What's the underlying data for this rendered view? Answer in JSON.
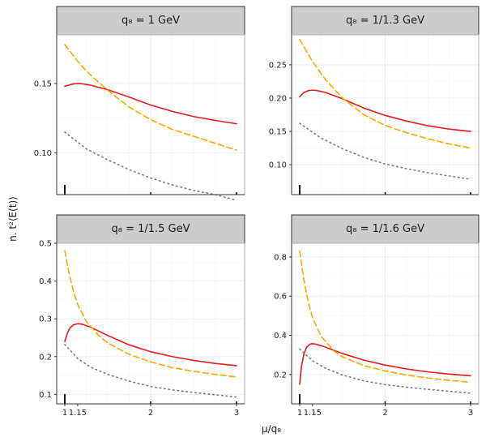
{
  "ylabel": "n. t²⟨E(t)⟩",
  "xlabel": "μ/q₈",
  "chart_data": [
    {
      "type": "line",
      "title": "q₈ = 1 GeV",
      "xlim": [
        1,
        3
      ],
      "ylim": [
        0.07,
        0.185
      ],
      "xticks": [
        1,
        2,
        3
      ],
      "yticks": [
        0.1,
        0.15
      ],
      "ytick_labels": [
        "0.10",
        "0.15"
      ],
      "series": [
        {
          "name": "solid",
          "color": "#e41a1c",
          "dash": "solid",
          "x": [
            1.0,
            1.1,
            1.15,
            1.2,
            1.3,
            1.5,
            1.75,
            2.0,
            2.25,
            2.5,
            2.75,
            3.0
          ],
          "y": [
            0.148,
            0.1497,
            0.15,
            0.1498,
            0.1488,
            0.1455,
            0.1402,
            0.1345,
            0.13,
            0.1262,
            0.1234,
            0.121
          ]
        },
        {
          "name": "dashed",
          "color": "#ffa500",
          "dash": "dashed",
          "x": [
            1.0,
            1.15,
            1.25,
            1.5,
            1.75,
            2.0,
            2.25,
            2.5,
            2.75,
            3.0
          ],
          "y": [
            0.178,
            0.166,
            0.159,
            0.145,
            0.133,
            0.124,
            0.117,
            0.112,
            0.107,
            0.102
          ]
        },
        {
          "name": "dotted",
          "color": "#7a7a7a",
          "dash": "dotted",
          "x": [
            1.0,
            1.25,
            1.5,
            1.75,
            2.0,
            2.25,
            2.5,
            2.75,
            3.0
          ],
          "y": [
            0.115,
            0.103,
            0.095,
            0.088,
            0.082,
            0.077,
            0.073,
            0.07,
            0.066
          ]
        }
      ]
    },
    {
      "type": "line",
      "title": "q₈ = 1/1.3 GeV",
      "xlim": [
        1,
        3
      ],
      "ylim": [
        0.055,
        0.295
      ],
      "xticks": [
        1,
        2,
        3
      ],
      "yticks": [
        0.1,
        0.15,
        0.2,
        0.25
      ],
      "ytick_labels": [
        "0.10",
        "0.15",
        "0.20",
        "0.25"
      ],
      "series": [
        {
          "name": "solid",
          "color": "#e41a1c",
          "dash": "solid",
          "x": [
            1.0,
            1.05,
            1.1,
            1.15,
            1.2,
            1.3,
            1.5,
            1.75,
            2.0,
            2.25,
            2.5,
            2.75,
            3.0
          ],
          "y": [
            0.202,
            0.2085,
            0.2112,
            0.212,
            0.2115,
            0.2085,
            0.199,
            0.185,
            0.174,
            0.1655,
            0.1585,
            0.1535,
            0.15
          ]
        },
        {
          "name": "dashed",
          "color": "#ffa500",
          "dash": "dashed",
          "x": [
            1.0,
            1.15,
            1.3,
            1.5,
            1.75,
            2.0,
            2.25,
            2.5,
            2.75,
            3.0
          ],
          "y": [
            0.288,
            0.255,
            0.228,
            0.2,
            0.175,
            0.159,
            0.148,
            0.139,
            0.131,
            0.125
          ]
        },
        {
          "name": "dotted",
          "color": "#7a7a7a",
          "dash": "dotted",
          "x": [
            1.0,
            1.25,
            1.5,
            1.75,
            2.0,
            2.25,
            2.5,
            2.75,
            3.0
          ],
          "y": [
            0.162,
            0.14,
            0.124,
            0.111,
            0.101,
            0.094,
            0.088,
            0.083,
            0.078
          ]
        }
      ]
    },
    {
      "type": "line",
      "title": "q₈ = 1/1.5 GeV",
      "xlim": [
        1,
        3
      ],
      "ylim": [
        0.075,
        0.5
      ],
      "xticks": [
        1,
        2,
        3
      ],
      "yticks": [
        0.1,
        0.2,
        0.3,
        0.4,
        0.5
      ],
      "ytick_labels": [
        "0.1",
        "0.2",
        "0.3",
        "0.4",
        "0.5"
      ],
      "series": [
        {
          "name": "solid",
          "color": "#e41a1c",
          "dash": "solid",
          "x": [
            1.0,
            1.03,
            1.06,
            1.1,
            1.15,
            1.2,
            1.3,
            1.5,
            1.75,
            2.0,
            2.25,
            2.5,
            2.75,
            3.0
          ],
          "y": [
            0.24,
            0.262,
            0.276,
            0.284,
            0.287,
            0.286,
            0.278,
            0.256,
            0.231,
            0.213,
            0.2,
            0.19,
            0.182,
            0.176
          ]
        },
        {
          "name": "dashed",
          "color": "#ffa500",
          "dash": "dashed",
          "x": [
            1.0,
            1.05,
            1.1,
            1.15,
            1.25,
            1.4,
            1.5,
            1.75,
            2.0,
            2.25,
            2.5,
            2.75,
            3.0
          ],
          "y": [
            0.48,
            0.42,
            0.373,
            0.338,
            0.293,
            0.255,
            0.236,
            0.206,
            0.186,
            0.171,
            0.161,
            0.153,
            0.146
          ]
        },
        {
          "name": "dotted",
          "color": "#7a7a7a",
          "dash": "dotted",
          "x": [
            1.0,
            1.15,
            1.3,
            1.5,
            1.75,
            2.0,
            2.25,
            2.5,
            2.75,
            3.0
          ],
          "y": [
            0.232,
            0.195,
            0.172,
            0.153,
            0.135,
            0.121,
            0.112,
            0.105,
            0.099,
            0.093
          ]
        }
      ]
    },
    {
      "type": "line",
      "title": "q₈ = 1/1.6 GeV",
      "xlim": [
        1,
        3
      ],
      "ylim": [
        0.05,
        0.87
      ],
      "xticks": [
        1,
        2,
        3
      ],
      "yticks": [
        0.2,
        0.4,
        0.6,
        0.8
      ],
      "ytick_labels": [
        "0.2",
        "0.4",
        "0.6",
        "0.8"
      ],
      "series": [
        {
          "name": "solid",
          "color": "#e41a1c",
          "dash": "solid",
          "x": [
            1.0,
            1.02,
            1.05,
            1.08,
            1.12,
            1.15,
            1.2,
            1.3,
            1.5,
            1.75,
            2.0,
            2.25,
            2.5,
            2.75,
            3.0
          ],
          "y": [
            0.15,
            0.24,
            0.305,
            0.338,
            0.355,
            0.357,
            0.354,
            0.34,
            0.307,
            0.273,
            0.248,
            0.228,
            0.213,
            0.202,
            0.193
          ]
        },
        {
          "name": "dashed",
          "color": "#ffa500",
          "dash": "dashed",
          "x": [
            1.0,
            1.05,
            1.1,
            1.15,
            1.25,
            1.4,
            1.5,
            1.75,
            2.0,
            2.25,
            2.5,
            2.75,
            3.0
          ],
          "y": [
            0.83,
            0.68,
            0.57,
            0.49,
            0.395,
            0.32,
            0.29,
            0.245,
            0.218,
            0.197,
            0.182,
            0.17,
            0.16
          ]
        },
        {
          "name": "dotted",
          "color": "#7a7a7a",
          "dash": "dotted",
          "x": [
            1.0,
            1.15,
            1.3,
            1.5,
            1.75,
            2.0,
            2.25,
            2.5,
            2.75,
            3.0
          ],
          "y": [
            0.33,
            0.27,
            0.232,
            0.197,
            0.167,
            0.148,
            0.135,
            0.124,
            0.114,
            0.104
          ]
        }
      ]
    }
  ],
  "bottom_xticks": [
    1,
    1.15,
    2,
    3
  ],
  "bottom_xtick_labels": [
    "1",
    "1.15",
    "2",
    "3"
  ]
}
